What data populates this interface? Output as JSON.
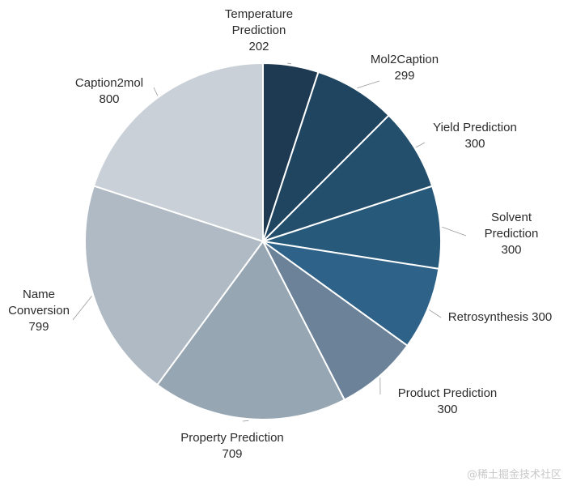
{
  "chart_data": {
    "type": "pie",
    "title": "",
    "slices": [
      {
        "label": "Temperature Prediction",
        "value": 202,
        "color": "#1d3a52",
        "label_lines": [
          "Temperature",
          "Prediction",
          "202"
        ]
      },
      {
        "label": "Mol2Caption",
        "value": 299,
        "color": "#1f4560",
        "label_lines": [
          "Mol2Caption",
          "299"
        ]
      },
      {
        "label": "Yield Prediction",
        "value": 300,
        "color": "#234f6d",
        "label_lines": [
          "Yield Prediction",
          "300"
        ]
      },
      {
        "label": "Solvent Prediction",
        "value": 300,
        "color": "#27597b",
        "label_lines": [
          "Solvent",
          "Prediction",
          "300"
        ]
      },
      {
        "label": "Retrosynthesis",
        "value": 300,
        "color": "#2e6288",
        "label_lines": [
          "Retrosynthesis 300"
        ]
      },
      {
        "label": "Product Prediction",
        "value": 300,
        "color": "#6b8299",
        "label_lines": [
          "Product Prediction",
          "300"
        ]
      },
      {
        "label": "Property Prediction",
        "value": 709,
        "color": "#97a6b3",
        "label_lines": [
          "Property Prediction",
          "709"
        ]
      },
      {
        "label": "Name Conversion",
        "value": 799,
        "color": "#afbac4",
        "label_lines": [
          "Name",
          "Conversion",
          "799"
        ]
      },
      {
        "label": "Caption2mol",
        "value": 800,
        "color": "#c9d0d7",
        "label_lines": [
          "Caption2mol",
          "800"
        ]
      }
    ]
  },
  "watermark": "@稀土掘金技术社区"
}
